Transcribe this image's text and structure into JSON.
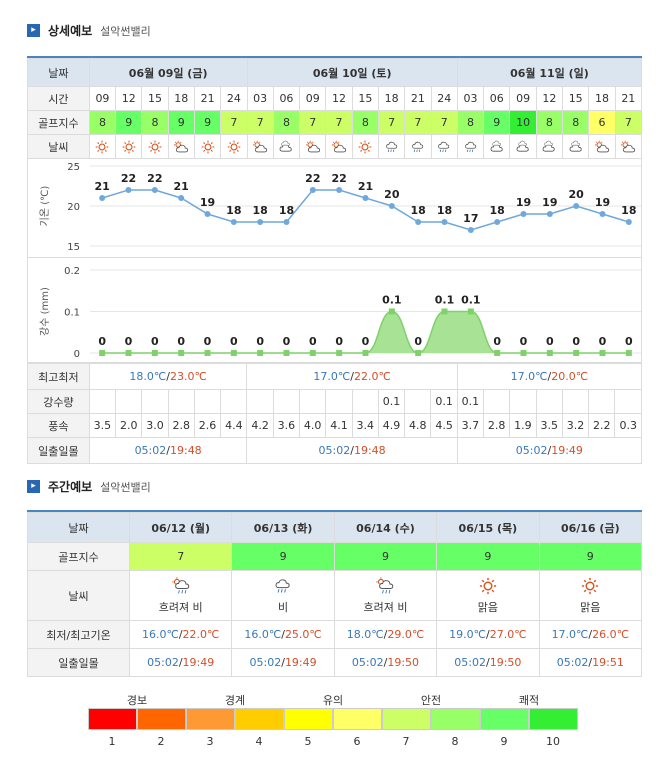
{
  "detail": {
    "title": "상세예보",
    "location": "설악썬밸리",
    "labels": {
      "date": "날짜",
      "time": "시간",
      "golf": "골프지수",
      "weather": "날씨",
      "minmax": "최고최저",
      "rain": "강수량",
      "wind": "풍속",
      "sun": "일출일몰"
    },
    "dates": [
      "06월 09일 (금)",
      "06월 10일 (토)",
      "06월 11일 (일)"
    ],
    "times": [
      "09",
      "12",
      "15",
      "18",
      "21",
      "24",
      "03",
      "06",
      "09",
      "12",
      "15",
      "18",
      "21",
      "24",
      "03",
      "06",
      "09",
      "12",
      "15",
      "18",
      "21"
    ],
    "golf": [
      "8",
      "9",
      "8",
      "9",
      "9",
      "7",
      "7",
      "8",
      "7",
      "7",
      "8",
      "7",
      "7",
      "7",
      "8",
      "9",
      "10",
      "8",
      "8",
      "6",
      "7"
    ],
    "weather_icons": [
      "sun",
      "sun",
      "sun",
      "sun-cloud",
      "sun",
      "sun",
      "sun-cloud",
      "cloud",
      "sun-cloud",
      "sun-cloud",
      "sun",
      "rain-cloud",
      "rain-cloud",
      "rain-cloud",
      "rain-cloud",
      "cloud",
      "cloud",
      "cloud",
      "cloud",
      "sun-cloud",
      "sun-cloud"
    ],
    "minmax": [
      {
        "min": "18.0℃",
        "max": "23.0℃"
      },
      {
        "min": "17.0℃",
        "max": "22.0℃"
      },
      {
        "min": "17.0℃",
        "max": "20.0℃"
      }
    ],
    "rain": [
      "",
      "",
      "",
      "",
      "",
      "",
      "",
      "",
      "",
      "",
      "",
      "0.1",
      "",
      "0.1",
      "0.1",
      "",
      "",
      "",
      "",
      "",
      ""
    ],
    "wind": [
      "3.5",
      "2.0",
      "3.0",
      "2.8",
      "2.6",
      "4.4",
      "4.2",
      "3.6",
      "4.0",
      "4.1",
      "3.4",
      "4.9",
      "4.8",
      "4.5",
      "3.7",
      "2.8",
      "1.9",
      "3.5",
      "3.2",
      "2.2",
      "0.3"
    ],
    "sun": [
      "05:02/19:48",
      "05:02/19:48",
      "05:02/19:49"
    ]
  },
  "chart_data": [
    {
      "type": "line",
      "ylabel": "기온 (℃)",
      "ylim": [
        15,
        25
      ],
      "yticks": [
        "25",
        "20",
        "15"
      ],
      "values": [
        21,
        22,
        22,
        21,
        19,
        18,
        18,
        18,
        22,
        22,
        21,
        20,
        18,
        18,
        17,
        18,
        19,
        19,
        20,
        19,
        18
      ]
    },
    {
      "type": "area",
      "ylabel": "강수 (mm)",
      "ylim": [
        0,
        0.2
      ],
      "yticks": [
        "0.2",
        "0.1",
        "0"
      ],
      "values": [
        0,
        0,
        0,
        0,
        0,
        0,
        0,
        0,
        0,
        0,
        0,
        0.1,
        0,
        0.1,
        0.1,
        0,
        0,
        0,
        0,
        0,
        0
      ],
      "point_labels": [
        "0",
        "0",
        "0",
        "0",
        "0",
        "0",
        "0",
        "0",
        "0",
        "0",
        "0",
        "0.1",
        "0",
        "0.1",
        "0.1",
        "0",
        "0",
        "0",
        "0",
        "0",
        "0"
      ]
    }
  ],
  "weekly": {
    "title": "주간예보",
    "location": "설악썬밸리",
    "labels": {
      "date": "날짜",
      "golf": "골프지수",
      "weather": "날씨",
      "minmax": "최저/최고기온",
      "sun": "일출일몰"
    },
    "days": [
      {
        "date": "06/12 (월)",
        "golf": "7",
        "icon": "sun-cloud-rain",
        "desc": "흐려져 비",
        "min": "16.0℃",
        "max": "22.0℃",
        "sun": "05:02/19:49"
      },
      {
        "date": "06/13 (화)",
        "golf": "9",
        "icon": "rain-cloud",
        "desc": "비",
        "min": "16.0℃",
        "max": "25.0℃",
        "sun": "05:02/19:49"
      },
      {
        "date": "06/14 (수)",
        "golf": "9",
        "icon": "sun-cloud-rain",
        "desc": "흐려져 비",
        "min": "18.0℃",
        "max": "29.0℃",
        "sun": "05:02/19:50"
      },
      {
        "date": "06/15 (목)",
        "golf": "9",
        "icon": "sun",
        "desc": "맑음",
        "min": "19.0℃",
        "max": "27.0℃",
        "sun": "05:02/19:50"
      },
      {
        "date": "06/16 (금)",
        "golf": "9",
        "icon": "sun",
        "desc": "맑음",
        "min": "17.0℃",
        "max": "26.0℃",
        "sun": "05:02/19:51"
      }
    ]
  },
  "legend": {
    "groups": [
      "경보",
      "경계",
      "유의",
      "안전",
      "쾌적"
    ],
    "numbers": [
      "1",
      "2",
      "3",
      "4",
      "5",
      "6",
      "7",
      "8",
      "9",
      "10"
    ],
    "colors": [
      "#ff0000",
      "#ff6600",
      "#ff9933",
      "#ffcc00",
      "#ffff00",
      "#ffff66",
      "#ccff66",
      "#99ff66",
      "#66ff66",
      "#33ee33"
    ]
  },
  "golf_colors": {
    "6": "#ffff66",
    "7": "#ccff66",
    "8": "#99ff66",
    "9": "#66ff66",
    "10": "#33ee33"
  }
}
